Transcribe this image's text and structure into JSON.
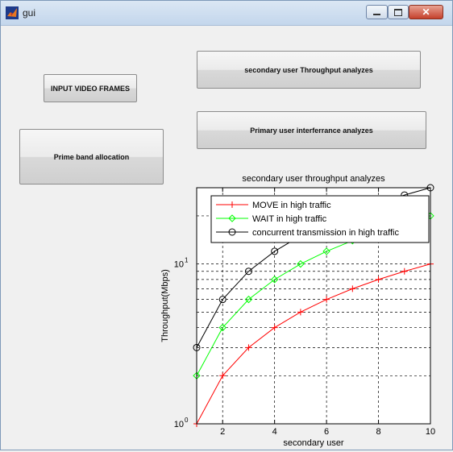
{
  "window": {
    "title": "gui"
  },
  "buttons": {
    "input_video_frames": "INPUT VIDEO FRAMES",
    "secondary_throughput": "secondary user Throughput analyzes",
    "primary_interference": "Primary user interferrance analyzes",
    "prime_band": "Prime band allocation"
  },
  "chart_data": {
    "type": "line",
    "title": "secondary user throughput analyzes",
    "xlabel": "secondary user",
    "ylabel": "Throughput(Mbps)",
    "xlim": [
      1,
      10
    ],
    "ylim": [
      1,
      30
    ],
    "yscale": "log",
    "grid": true,
    "legend_position": "top-right",
    "x_ticks": [
      2,
      4,
      6,
      8,
      10
    ],
    "y_ticks": [
      {
        "base": "10",
        "exp": "0"
      },
      {
        "base": "10",
        "exp": "1"
      }
    ],
    "x": [
      1,
      2,
      3,
      4,
      5,
      6,
      7,
      8,
      9,
      10
    ],
    "series": [
      {
        "name": "MOVE in high traffic",
        "color": "#ff0000",
        "marker": "plus",
        "values": [
          1,
          2,
          3,
          4,
          5,
          6,
          7,
          8,
          9,
          10
        ]
      },
      {
        "name": "WAIT in high traffic",
        "color": "#00ff00",
        "marker": "diamond",
        "values": [
          2,
          4,
          6,
          8,
          10,
          12,
          14,
          16,
          18,
          20
        ]
      },
      {
        "name": "concurrent transmission in high traffic",
        "color": "#000000",
        "marker": "circle",
        "values": [
          3,
          6,
          9,
          12,
          15,
          18,
          21,
          24,
          27,
          30
        ]
      }
    ]
  }
}
